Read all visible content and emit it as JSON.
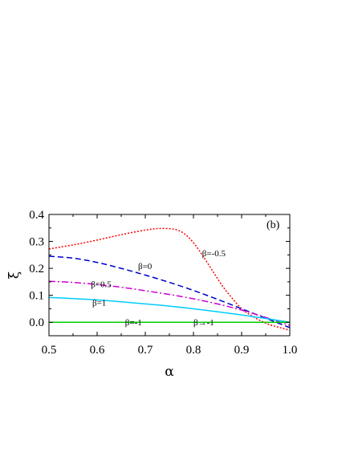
{
  "chart_data": {
    "type": "line",
    "panel_label": "(b)",
    "xlabel": "α",
    "ylabel": "ξ",
    "xlim": [
      0.5,
      1.0
    ],
    "ylim": [
      -0.05,
      0.4
    ],
    "x_ticks": [
      0.5,
      0.6,
      0.7,
      0.8,
      0.9,
      1.0
    ],
    "x_tick_labels": [
      "0.5",
      "0.6",
      "0.7",
      "0.8",
      "0.9",
      "1.0"
    ],
    "y_ticks": [
      0.0,
      0.1,
      0.2,
      0.3,
      0.4
    ],
    "y_tick_labels": [
      "0.0",
      "0.1",
      "0.2",
      "0.3",
      "0.4"
    ],
    "grid": false,
    "series": [
      {
        "name": "β=-0.5",
        "color": "#ff0000",
        "dash": "dotted",
        "x": [
          0.5,
          0.55,
          0.6,
          0.65,
          0.7,
          0.73,
          0.76,
          0.78,
          0.8,
          0.82,
          0.84,
          0.86,
          0.88,
          0.9,
          0.92,
          0.94,
          0.96,
          0.98,
          1.0
        ],
        "y": [
          0.272,
          0.287,
          0.305,
          0.325,
          0.342,
          0.348,
          0.345,
          0.33,
          0.295,
          0.245,
          0.19,
          0.135,
          0.09,
          0.05,
          0.025,
          0.005,
          -0.01,
          -0.02,
          -0.03
        ]
      },
      {
        "name": "β=0",
        "color": "#0000cc",
        "dash": "dashed",
        "x": [
          0.5,
          0.55,
          0.6,
          0.65,
          0.7,
          0.75,
          0.8,
          0.85,
          0.9,
          0.95,
          1.0
        ],
        "y": [
          0.245,
          0.238,
          0.222,
          0.2,
          0.175,
          0.148,
          0.118,
          0.085,
          0.05,
          0.015,
          -0.02
        ]
      },
      {
        "name": "β=0.5",
        "color": "#cc00cc",
        "dash": "dash-dot",
        "x": [
          0.5,
          0.55,
          0.6,
          0.65,
          0.7,
          0.75,
          0.8,
          0.85,
          0.9,
          0.95,
          1.0
        ],
        "y": [
          0.152,
          0.148,
          0.14,
          0.13,
          0.117,
          0.103,
          0.087,
          0.068,
          0.045,
          0.018,
          -0.012
        ]
      },
      {
        "name": "β=1",
        "color": "#00ccff",
        "dash": "solid",
        "x": [
          0.5,
          0.55,
          0.6,
          0.65,
          0.7,
          0.75,
          0.8,
          0.85,
          0.9,
          0.95,
          1.0
        ],
        "y": [
          0.092,
          0.088,
          0.083,
          0.076,
          0.068,
          0.06,
          0.05,
          0.039,
          0.027,
          0.014,
          0.0
        ]
      },
      {
        "name": "β=-1",
        "color": "#00cc00",
        "dash": "solid",
        "x": [
          0.5,
          1.0
        ],
        "y": [
          0.0,
          0.0
        ]
      }
    ],
    "annotations": [
      {
        "text": "β=-0.5",
        "x": 0.818,
        "y": 0.245
      },
      {
        "text": "β=0",
        "x": 0.685,
        "y": 0.198
      },
      {
        "text": "β=0.5",
        "x": 0.587,
        "y": 0.131
      },
      {
        "text": "β=1",
        "x": 0.59,
        "y": 0.062
      },
      {
        "text": "β=-1",
        "x": 0.658,
        "y": -0.012
      },
      {
        "text": "β→-1",
        "x": 0.8,
        "y": -0.012
      }
    ]
  }
}
